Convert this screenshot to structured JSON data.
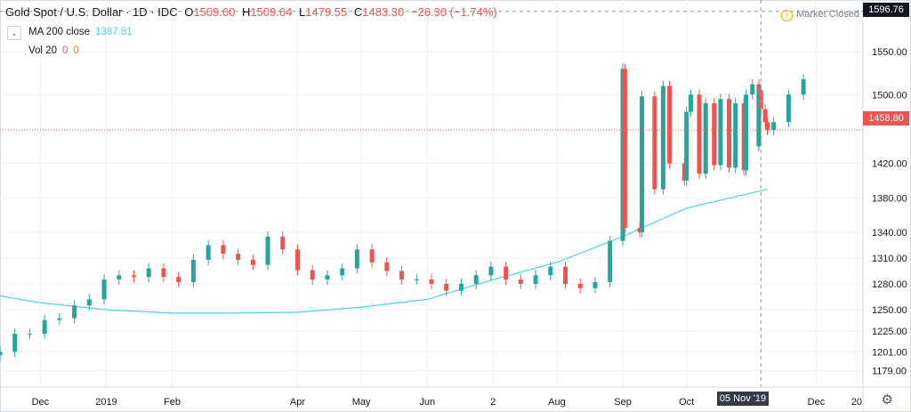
{
  "header": {
    "symbol": "Gold Spot / U.S. Dollar · 1D · IDC",
    "o_label": "O",
    "o": "1509.60",
    "h_label": "H",
    "h": "1509.64",
    "l_label": "L",
    "l": "1479.55",
    "c_label": "C",
    "c": "1483.30",
    "change": "−26.30 (−1.74%)"
  },
  "indicators": {
    "ma_label": "MA 200 close",
    "ma_value": "1387.81",
    "vol_label": "Vol 20",
    "vol_a": "0",
    "vol_b": "0"
  },
  "market_status": "Market Closed",
  "crosshair_price": "1596.76",
  "last_price": "1458.80",
  "crosshair_date": "05 Nov '19",
  "colors": {
    "up": "#26a69a",
    "down": "#ef5350",
    "ma": "#4dd0e1",
    "last": "#ef5350"
  },
  "chart_data": {
    "type": "candlestick",
    "ylim": [
      1160,
      1610
    ],
    "y_ticks": [
      1179.0,
      1201.0,
      1225.0,
      1250.0,
      1280.0,
      1310.0,
      1340.0,
      1380.0,
      1420.0,
      1500.0,
      1550.0
    ],
    "x_ticks": [
      {
        "label": "Dec",
        "date": "2018-12-01"
      },
      {
        "label": "2019",
        "date": "2019-01-01"
      },
      {
        "label": "Feb",
        "date": "2019-02-01"
      },
      {
        "label": "Apr",
        "date": "2019-04-01"
      },
      {
        "label": "May",
        "date": "2019-05-01"
      },
      {
        "label": "Jun",
        "date": "2019-06-01"
      },
      {
        "label": "2",
        "date": "2019-07-02"
      },
      {
        "label": "Aug",
        "date": "2019-08-01"
      },
      {
        "label": "Sep",
        "date": "2019-09-01"
      },
      {
        "label": "Oct",
        "date": "2019-10-01"
      },
      {
        "label": "Dec",
        "date": "2019-12-01"
      },
      {
        "label": "20",
        "date": "2019-12-20"
      }
    ],
    "x_range": [
      "2018-11-12",
      "2019-12-23"
    ],
    "close_series": [
      [
        "2018-11-12",
        1201
      ],
      [
        "2018-11-19",
        1222
      ],
      [
        "2018-11-26",
        1222
      ],
      [
        "2018-12-03",
        1238
      ],
      [
        "2018-12-10",
        1240
      ],
      [
        "2018-12-17",
        1255
      ],
      [
        "2018-12-24",
        1262
      ],
      [
        "2018-12-31",
        1285
      ],
      [
        "2019-01-07",
        1290
      ],
      [
        "2019-01-14",
        1288
      ],
      [
        "2019-01-21",
        1298
      ],
      [
        "2019-01-28",
        1288
      ],
      [
        "2019-02-04",
        1282
      ],
      [
        "2019-02-11",
        1308
      ],
      [
        "2019-02-18",
        1325
      ],
      [
        "2019-02-25",
        1315
      ],
      [
        "2019-03-04",
        1308
      ],
      [
        "2019-03-11",
        1302
      ],
      [
        "2019-03-18",
        1335
      ],
      [
        "2019-03-25",
        1320
      ],
      [
        "2019-04-01",
        1296
      ],
      [
        "2019-04-08",
        1285
      ],
      [
        "2019-04-15",
        1290
      ],
      [
        "2019-04-22",
        1298
      ],
      [
        "2019-04-29",
        1320
      ],
      [
        "2019-05-06",
        1305
      ],
      [
        "2019-05-13",
        1295
      ],
      [
        "2019-05-20",
        1285
      ],
      [
        "2019-05-27",
        1285
      ],
      [
        "2019-06-03",
        1280
      ],
      [
        "2019-06-10",
        1272
      ],
      [
        "2019-06-17",
        1280
      ],
      [
        "2019-06-24",
        1290
      ],
      [
        "2019-07-01",
        1300
      ],
      [
        "2019-07-08",
        1285
      ],
      [
        "2019-07-15",
        1280
      ],
      [
        "2019-07-22",
        1290
      ],
      [
        "2019-07-29",
        1300
      ],
      [
        "2019-08-05",
        1280
      ],
      [
        "2019-08-12",
        1275
      ],
      [
        "2019-08-19",
        1282
      ],
      [
        "2019-08-26",
        1330
      ],
      [
        "2019-09-02",
        1345
      ],
      [
        "2019-09-09",
        1340
      ],
      [
        "2019-09-16",
        1390
      ],
      [
        "2019-09-23",
        1420
      ],
      [
        "2019-09-30",
        1400
      ],
      [
        "2019-10-07",
        1408
      ],
      [
        "2019-10-14",
        1418
      ],
      [
        "2019-10-21",
        1415
      ],
      [
        "2019-10-28",
        1412
      ],
      [
        "2019-11-04",
        1440
      ],
      [
        "2019-11-11",
        1468
      ],
      [
        "2019-11-18",
        1500
      ],
      [
        "2019-11-25",
        1518
      ]
    ],
    "recent_closes": [
      [
        "2019-09-01",
        1530
      ],
      [
        "2019-09-10",
        1498
      ],
      [
        "2019-09-20",
        1510
      ],
      [
        "2019-10-01",
        1480
      ],
      [
        "2019-10-03",
        1500
      ],
      [
        "2019-10-10",
        1490
      ],
      [
        "2019-10-17",
        1495
      ],
      [
        "2019-10-24",
        1490
      ],
      [
        "2019-10-29",
        1500
      ],
      [
        "2019-11-01",
        1512
      ],
      [
        "2019-11-04",
        1505
      ],
      [
        "2019-11-05",
        1483
      ],
      [
        "2019-11-07",
        1468
      ],
      [
        "2019-11-08",
        1459
      ]
    ],
    "ma200": [
      [
        "2018-11-12",
        1266
      ],
      [
        "2018-12-01",
        1258
      ],
      [
        "2019-01-01",
        1250
      ],
      [
        "2019-02-01",
        1246
      ],
      [
        "2019-03-01",
        1246
      ],
      [
        "2019-04-01",
        1247
      ],
      [
        "2019-05-01",
        1253
      ],
      [
        "2019-06-01",
        1262
      ],
      [
        "2019-07-02",
        1285
      ],
      [
        "2019-08-01",
        1305
      ],
      [
        "2019-09-01",
        1335
      ],
      [
        "2019-10-01",
        1368
      ],
      [
        "2019-11-08",
        1390
      ]
    ]
  }
}
